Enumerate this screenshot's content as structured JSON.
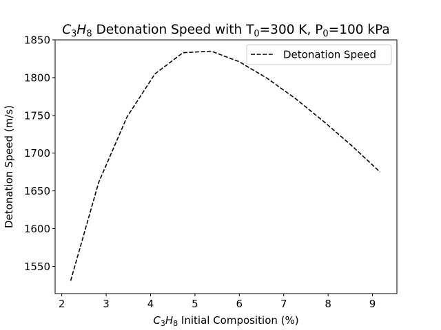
{
  "chart_data": {
    "type": "line",
    "title": {
      "chem": {
        "C": "C",
        "n3": "3",
        "H": "H",
        "n8": "8"
      },
      "rest_a": " Detonation Speed with T",
      "sub0_a": "0",
      "rest_b": "=300 K, P",
      "sub0_b": "0",
      "rest_c": "=100 kPa"
    },
    "xlabel": {
      "chem": {
        "C": "C",
        "n3": "3",
        "H": "H",
        "n8": "8"
      },
      "rest": " Initial Composition (%)"
    },
    "ylabel": "Detonation Speed (m/s)",
    "xlim": [
      1.85,
      9.55
    ],
    "ylim": [
      1514,
      1850
    ],
    "xticks": [
      2,
      3,
      4,
      5,
      6,
      7,
      8,
      9
    ],
    "yticks": [
      1550,
      1600,
      1650,
      1700,
      1750,
      1800,
      1850
    ],
    "legend_position": "top-right",
    "grid": false,
    "series": [
      {
        "name": "Detonation Speed",
        "color": "#000000",
        "line_style": "dashed",
        "x": [
          2.2,
          2.83,
          3.47,
          4.1,
          4.73,
          5.37,
          6.0,
          6.63,
          7.27,
          7.9,
          8.53,
          9.17
        ],
        "y": [
          1531,
          1661,
          1748,
          1805,
          1833,
          1835,
          1821,
          1799,
          1772,
          1742,
          1710,
          1675
        ]
      }
    ]
  }
}
